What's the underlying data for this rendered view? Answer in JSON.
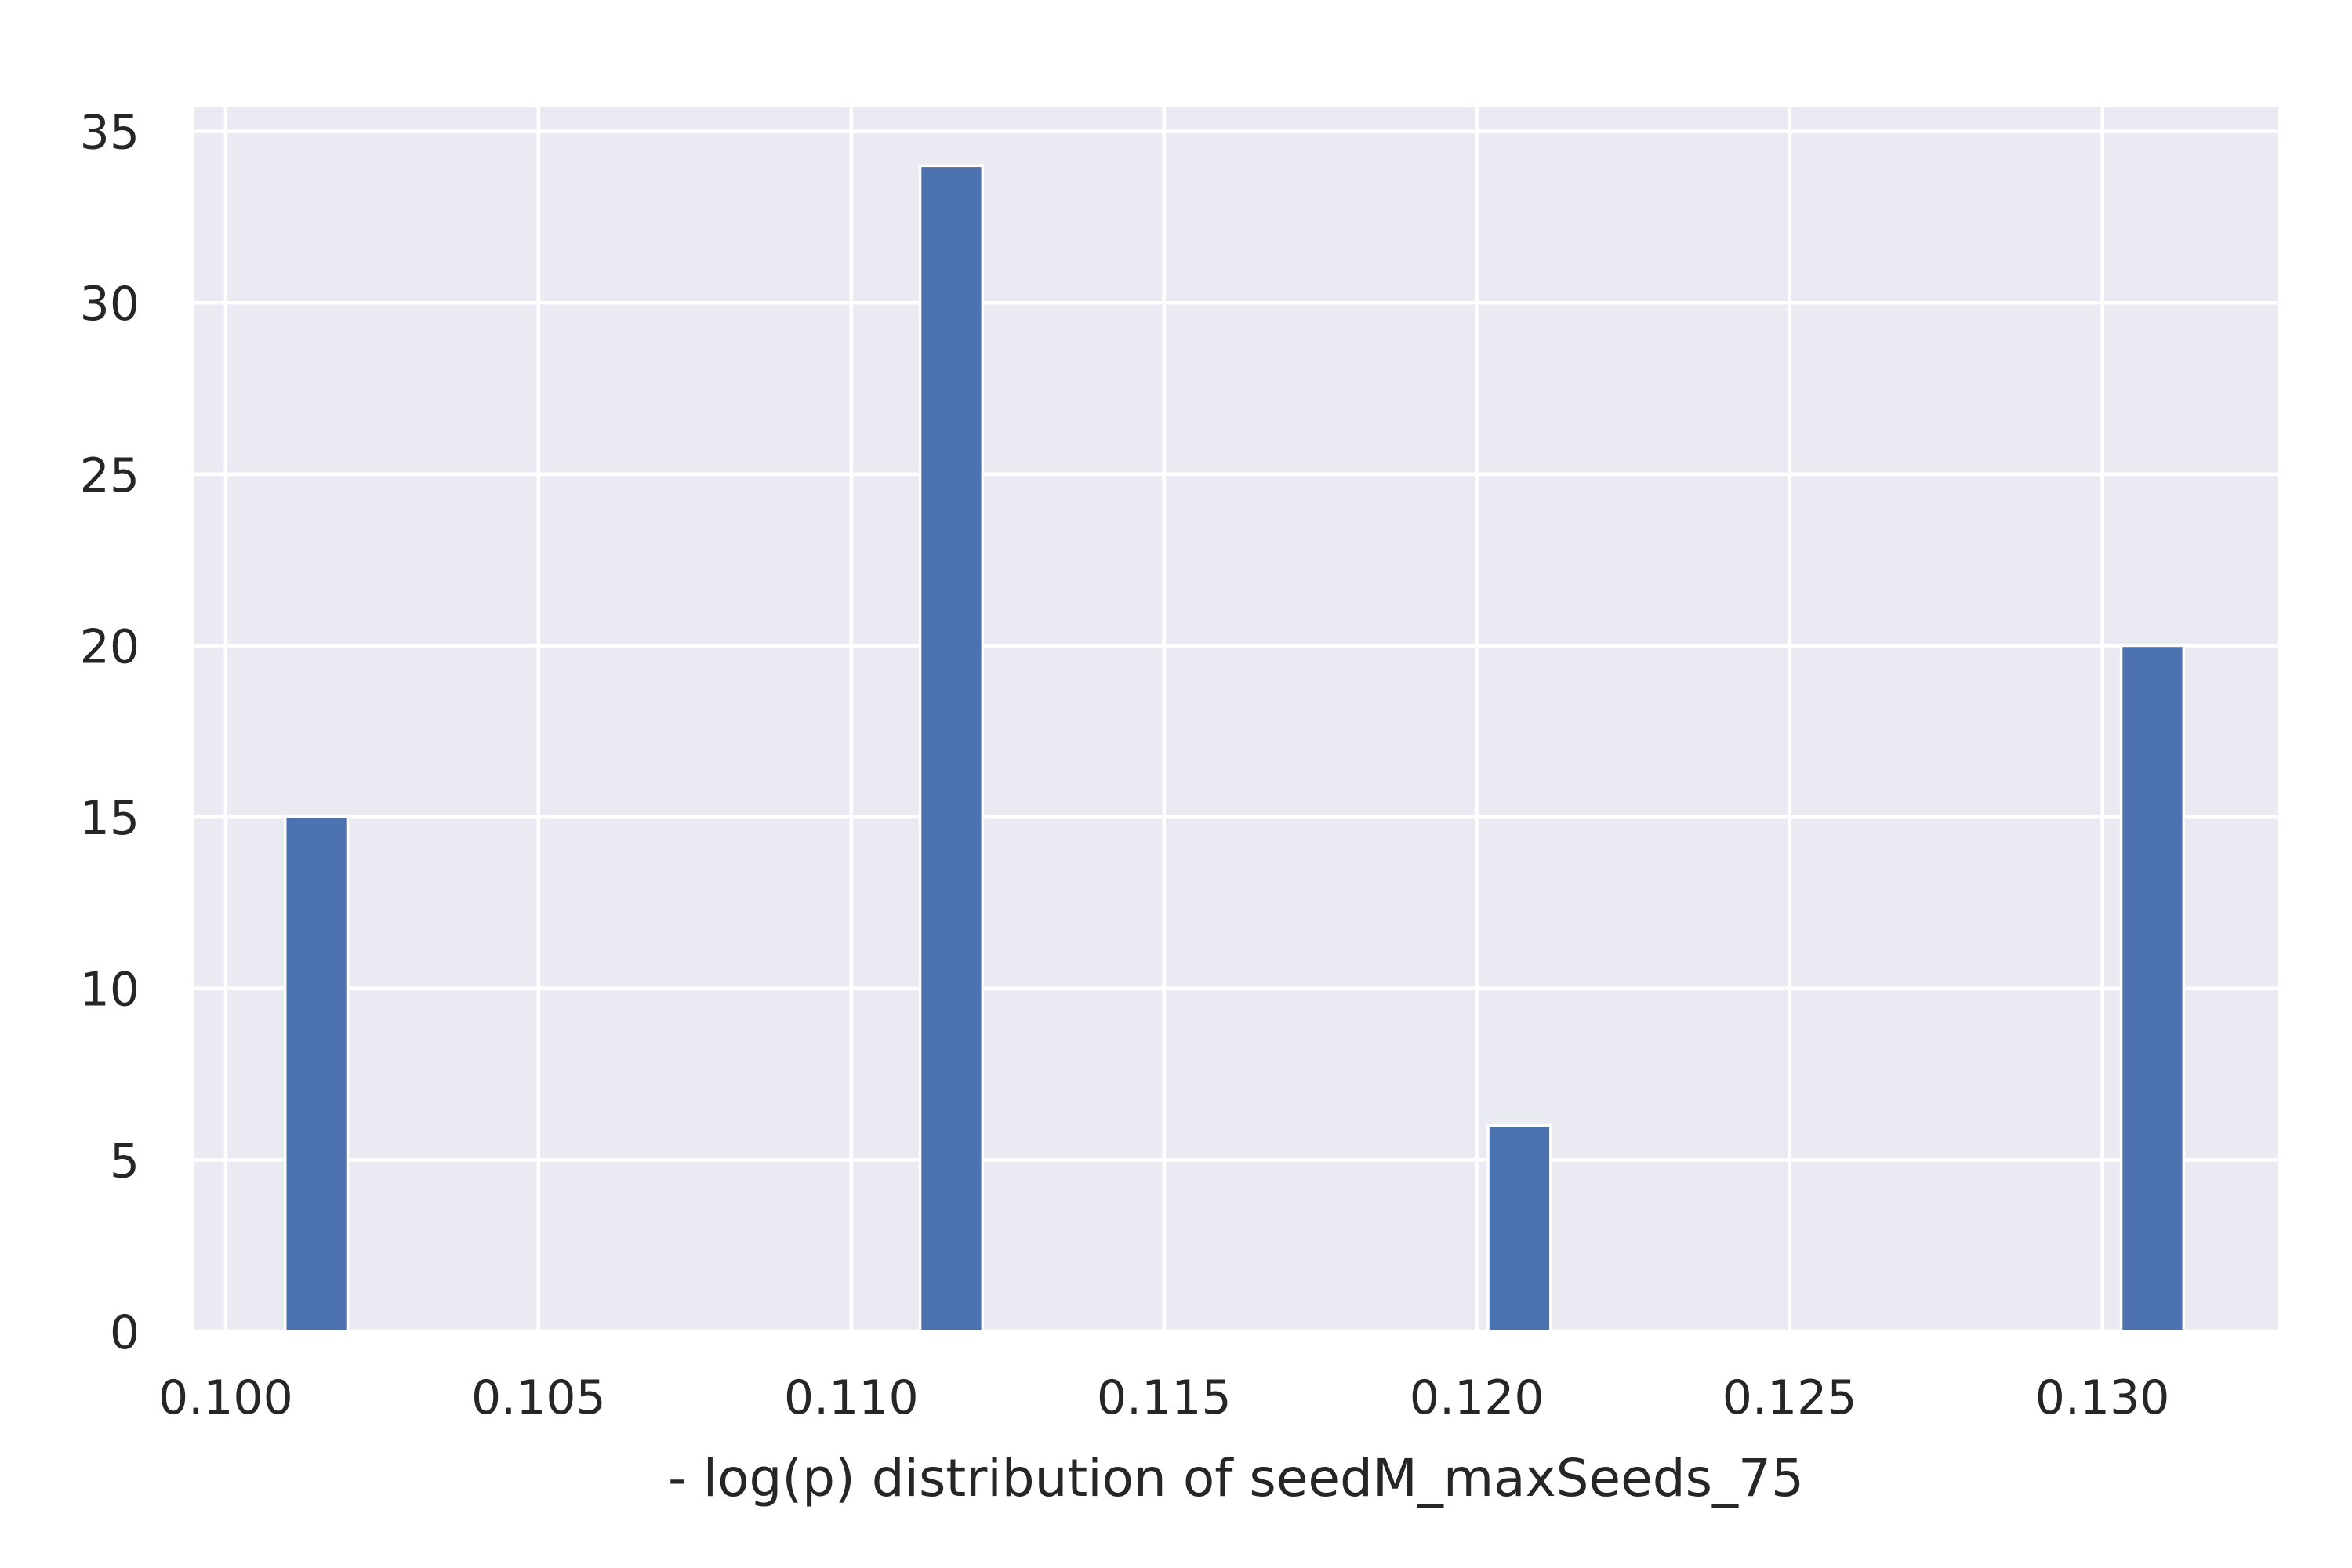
{
  "chart_data": {
    "type": "bar",
    "title": "",
    "xlabel": "- log(p) distribution of seedM_maxSeeds_75",
    "ylabel": "",
    "xlim": [
      0.0995,
      0.1328
    ],
    "ylim": [
      0,
      35.7
    ],
    "xticks": [
      0.1,
      0.105,
      0.11,
      0.115,
      0.12,
      0.125,
      0.13
    ],
    "xtick_labels": [
      "0.100",
      "0.105",
      "0.110",
      "0.115",
      "0.120",
      "0.125",
      "0.130"
    ],
    "yticks": [
      0,
      5,
      10,
      15,
      20,
      25,
      30,
      35
    ],
    "ytick_labels": [
      "0",
      "5",
      "10",
      "15",
      "20",
      "25",
      "30",
      "35"
    ],
    "grid": true,
    "bar_color": "#4c72b0",
    "background_color": "#eaeaf2",
    "bars": [
      {
        "x0": 0.10095,
        "x1": 0.10195,
        "value": 15
      },
      {
        "x0": 0.1111,
        "x1": 0.1121,
        "value": 34
      },
      {
        "x0": 0.12018,
        "x1": 0.12118,
        "value": 6
      },
      {
        "x0": 0.1303,
        "x1": 0.1313,
        "value": 20
      }
    ]
  }
}
